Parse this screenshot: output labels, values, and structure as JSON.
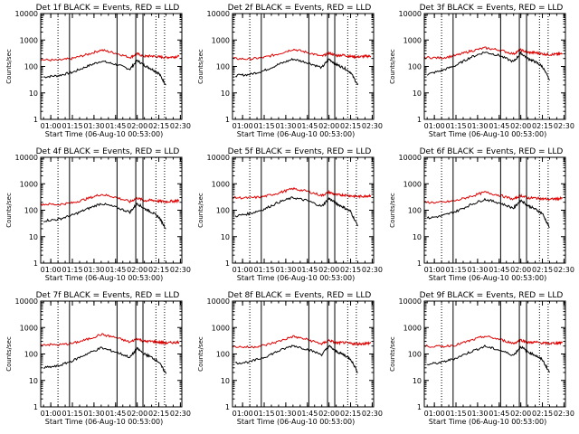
{
  "figure": {
    "background": "#ffffff",
    "event_color": "#000000",
    "lld_color": "#e00000",
    "axis_color": "#000000"
  },
  "chart_data": [
    {
      "type": "line",
      "title": "Det 1f BLACK = Events, RED = LLD",
      "xlabel": "Start Time (06-Aug-10 00:53:00)",
      "ylabel": "Counts/sec",
      "yscale": "log",
      "ylim": [
        1,
        10000
      ],
      "xlim": [
        "00:53",
        "02:31"
      ],
      "xtick_labels": [
        "01:00",
        "01:15",
        "01:30",
        "01:45",
        "02:00",
        "02:15",
        "02:30"
      ],
      "ytick_labels": [
        "1",
        "10",
        "100",
        "1000",
        "10000"
      ],
      "series": [
        {
          "name": "Events",
          "color": "#000000",
          "x": [
            "00:55",
            "01:05",
            "01:15",
            "01:25",
            "01:35",
            "01:45",
            "01:55",
            "02:00",
            "02:05",
            "02:10",
            "02:15",
            "02:20"
          ],
          "values": [
            40,
            45,
            60,
            100,
            160,
            120,
            80,
            170,
            110,
            80,
            55,
            20
          ]
        },
        {
          "name": "LLD",
          "color": "#e00000",
          "x": [
            "00:53",
            "01:05",
            "01:15",
            "01:25",
            "01:35",
            "01:45",
            "01:55",
            "02:00",
            "02:05",
            "02:10",
            "02:15",
            "02:20",
            "02:25",
            "02:29"
          ],
          "values": [
            180,
            170,
            200,
            280,
            420,
            320,
            220,
            300,
            240,
            250,
            230,
            220,
            230,
            240
          ]
        }
      ]
    },
    {
      "type": "line",
      "title": "Det 2f BLACK = Events, RED = LLD",
      "xlabel": "Start Time (06-Aug-10 00:53:00)",
      "ylabel": "Counts/sec",
      "yscale": "log",
      "ylim": [
        1,
        10000
      ],
      "xlim": [
        "00:53",
        "02:31"
      ],
      "xtick_labels": [
        "01:00",
        "01:15",
        "01:30",
        "01:45",
        "02:00",
        "02:15",
        "02:30"
      ],
      "ytick_labels": [
        "1",
        "10",
        "100",
        "1000",
        "10000"
      ],
      "series": [
        {
          "name": "Events",
          "color": "#000000",
          "x": [
            "00:55",
            "01:05",
            "01:15",
            "01:25",
            "01:35",
            "01:45",
            "01:55",
            "02:00",
            "02:05",
            "02:10",
            "02:15",
            "02:20"
          ],
          "values": [
            45,
            50,
            70,
            120,
            190,
            140,
            90,
            190,
            120,
            90,
            60,
            20
          ]
        },
        {
          "name": "LLD",
          "color": "#e00000",
          "x": [
            "00:53",
            "01:05",
            "01:15",
            "01:25",
            "01:35",
            "01:45",
            "01:55",
            "02:00",
            "02:05",
            "02:10",
            "02:15",
            "02:20",
            "02:25",
            "02:29"
          ],
          "values": [
            200,
            190,
            220,
            300,
            450,
            340,
            240,
            320,
            260,
            270,
            240,
            230,
            240,
            250
          ]
        }
      ]
    },
    {
      "type": "line",
      "title": "Det 3f BLACK = Events, RED = LLD",
      "xlabel": "Start Time (06-Aug-10 00:53:00)",
      "ylabel": "Counts/sec",
      "yscale": "log",
      "ylim": [
        1,
        10000
      ],
      "xlim": [
        "00:53",
        "02:31"
      ],
      "xtick_labels": [
        "01:00",
        "01:15",
        "01:30",
        "01:45",
        "02:00",
        "02:15",
        "02:30"
      ],
      "ytick_labels": [
        "1",
        "10",
        "100",
        "1000",
        "10000"
      ],
      "series": [
        {
          "name": "Events",
          "color": "#000000",
          "x": [
            "00:55",
            "01:05",
            "01:15",
            "01:25",
            "01:35",
            "01:45",
            "01:55",
            "02:00",
            "02:05",
            "02:10",
            "02:15",
            "02:20"
          ],
          "values": [
            50,
            70,
            110,
            220,
            350,
            260,
            150,
            320,
            200,
            150,
            100,
            30
          ]
        },
        {
          "name": "LLD",
          "color": "#e00000",
          "x": [
            "00:53",
            "01:05",
            "01:15",
            "01:25",
            "01:35",
            "01:45",
            "01:55",
            "02:00",
            "02:05",
            "02:10",
            "02:15",
            "02:20",
            "02:25",
            "02:29"
          ],
          "values": [
            220,
            210,
            260,
            380,
            500,
            420,
            300,
            420,
            340,
            330,
            300,
            280,
            290,
            300
          ]
        }
      ]
    },
    {
      "type": "line",
      "title": "Det 4f BLACK = Events, RED = LLD",
      "xlabel": "Start Time (06-Aug-10 00:53:00)",
      "ylabel": "Counts/sec",
      "yscale": "log",
      "ylim": [
        1,
        10000
      ],
      "xlim": [
        "00:53",
        "02:31"
      ],
      "xtick_labels": [
        "01:00",
        "01:15",
        "01:30",
        "01:45",
        "02:00",
        "02:15",
        "02:30"
      ],
      "ytick_labels": [
        "1",
        "10",
        "100",
        "1000",
        "10000"
      ],
      "series": [
        {
          "name": "Events",
          "color": "#000000",
          "x": [
            "00:55",
            "01:05",
            "01:15",
            "01:25",
            "01:35",
            "01:45",
            "01:55",
            "02:00",
            "02:05",
            "02:10",
            "02:15",
            "02:20"
          ],
          "values": [
            40,
            45,
            65,
            110,
            180,
            130,
            85,
            180,
            115,
            85,
            55,
            20
          ]
        },
        {
          "name": "LLD",
          "color": "#e00000",
          "x": [
            "00:53",
            "01:05",
            "01:15",
            "01:25",
            "01:35",
            "01:45",
            "01:55",
            "02:00",
            "02:05",
            "02:10",
            "02:15",
            "02:20",
            "02:25",
            "02:29"
          ],
          "values": [
            170,
            165,
            190,
            270,
            400,
            310,
            210,
            290,
            230,
            240,
            220,
            210,
            220,
            230
          ]
        }
      ]
    },
    {
      "type": "line",
      "title": "Det 5f BLACK = Events, RED = LLD",
      "xlabel": "Start Time (06-Aug-10 00:53:00)",
      "ylabel": "Counts/sec",
      "yscale": "log",
      "ylim": [
        1,
        10000
      ],
      "xlim": [
        "00:53",
        "02:31"
      ],
      "xtick_labels": [
        "01:00",
        "01:15",
        "01:30",
        "01:45",
        "02:00",
        "02:15",
        "02:30"
      ],
      "ytick_labels": [
        "1",
        "10",
        "100",
        "1000",
        "10000"
      ],
      "series": [
        {
          "name": "Events",
          "color": "#000000",
          "x": [
            "00:55",
            "01:05",
            "01:15",
            "01:25",
            "01:35",
            "01:45",
            "01:55",
            "02:00",
            "02:05",
            "02:10",
            "02:15",
            "02:20"
          ],
          "values": [
            60,
            75,
            110,
            200,
            300,
            230,
            140,
            280,
            180,
            130,
            90,
            25
          ]
        },
        {
          "name": "LLD",
          "color": "#e00000",
          "x": [
            "00:53",
            "01:05",
            "01:15",
            "01:25",
            "01:35",
            "01:45",
            "01:55",
            "02:00",
            "02:05",
            "02:10",
            "02:15",
            "02:20",
            "02:25",
            "02:29"
          ],
          "values": [
            300,
            290,
            330,
            450,
            650,
            520,
            360,
            480,
            380,
            380,
            350,
            330,
            340,
            360
          ]
        }
      ]
    },
    {
      "type": "line",
      "title": "Det 6f BLACK = Events, RED = LLD",
      "xlabel": "Start Time (06-Aug-10 00:53:00)",
      "ylabel": "Counts/sec",
      "yscale": "log",
      "ylim": [
        1,
        10000
      ],
      "xlim": [
        "00:53",
        "02:31"
      ],
      "xtick_labels": [
        "01:00",
        "01:15",
        "01:30",
        "01:45",
        "02:00",
        "02:15",
        "02:30"
      ],
      "ytick_labels": [
        "1",
        "10",
        "100",
        "1000",
        "10000"
      ],
      "series": [
        {
          "name": "Events",
          "color": "#000000",
          "x": [
            "00:55",
            "01:05",
            "01:15",
            "01:25",
            "01:35",
            "01:45",
            "01:55",
            "02:00",
            "02:05",
            "02:10",
            "02:15",
            "02:20"
          ],
          "values": [
            50,
            60,
            90,
            160,
            260,
            190,
            120,
            240,
            150,
            110,
            75,
            22
          ]
        },
        {
          "name": "LLD",
          "color": "#e00000",
          "x": [
            "00:53",
            "01:05",
            "01:15",
            "01:25",
            "01:35",
            "01:45",
            "01:55",
            "02:00",
            "02:05",
            "02:10",
            "02:15",
            "02:20",
            "02:25",
            "02:29"
          ],
          "values": [
            200,
            195,
            230,
            330,
            480,
            370,
            260,
            360,
            290,
            290,
            270,
            260,
            270,
            280
          ]
        }
      ]
    },
    {
      "type": "line",
      "title": "Det 7f BLACK = Events, RED = LLD",
      "xlabel": "Start Time (06-Aug-10 00:53:00)",
      "ylabel": "Counts/sec",
      "yscale": "log",
      "ylim": [
        1,
        10000
      ],
      "xlim": [
        "00:53",
        "02:31"
      ],
      "xtick_labels": [
        "01:00",
        "01:15",
        "01:30",
        "01:45",
        "02:00",
        "02:15",
        "02:30"
      ],
      "ytick_labels": [
        "1",
        "10",
        "100",
        "1000",
        "10000"
      ],
      "series": [
        {
          "name": "Events",
          "color": "#000000",
          "x": [
            "00:55",
            "01:05",
            "01:15",
            "01:25",
            "01:35",
            "01:45",
            "01:55",
            "02:00",
            "02:05",
            "02:10",
            "02:15",
            "02:20"
          ],
          "values": [
            30,
            35,
            55,
            100,
            170,
            120,
            75,
            160,
            100,
            75,
            50,
            18
          ]
        },
        {
          "name": "LLD",
          "color": "#e00000",
          "x": [
            "00:53",
            "01:05",
            "01:15",
            "01:25",
            "01:35",
            "01:45",
            "01:55",
            "02:00",
            "02:05",
            "02:10",
            "02:15",
            "02:20",
            "02:25",
            "02:29"
          ],
          "values": [
            230,
            220,
            250,
            350,
            550,
            420,
            280,
            380,
            300,
            300,
            280,
            260,
            270,
            280
          ]
        }
      ]
    },
    {
      "type": "line",
      "title": "Det 8f BLACK = Events, RED = LLD",
      "xlabel": "Start Time (06-Aug-10 00:53:00)",
      "ylabel": "Counts/sec",
      "yscale": "log",
      "ylim": [
        1,
        10000
      ],
      "xlim": [
        "00:53",
        "02:31"
      ],
      "xtick_labels": [
        "01:00",
        "01:15",
        "01:30",
        "01:45",
        "02:00",
        "02:15",
        "02:30"
      ],
      "ytick_labels": [
        "1",
        "10",
        "100",
        "1000",
        "10000"
      ],
      "series": [
        {
          "name": "Events",
          "color": "#000000",
          "x": [
            "00:55",
            "01:05",
            "01:15",
            "01:25",
            "01:35",
            "01:45",
            "01:55",
            "02:00",
            "02:05",
            "02:10",
            "02:15",
            "02:20"
          ],
          "values": [
            45,
            50,
            75,
            130,
            210,
            150,
            95,
            200,
            125,
            95,
            65,
            20
          ]
        },
        {
          "name": "LLD",
          "color": "#e00000",
          "x": [
            "00:53",
            "01:05",
            "01:15",
            "01:25",
            "01:35",
            "01:45",
            "01:55",
            "02:00",
            "02:05",
            "02:10",
            "02:15",
            "02:20",
            "02:25",
            "02:29"
          ],
          "values": [
            190,
            180,
            210,
            300,
            460,
            350,
            240,
            330,
            260,
            270,
            250,
            240,
            250,
            260
          ]
        }
      ]
    },
    {
      "type": "line",
      "title": "Det 9f BLACK = Events, RED = LLD",
      "xlabel": "Start Time (06-Aug-10 00:53:00)",
      "ylabel": "Counts/sec",
      "yscale": "log",
      "ylim": [
        1,
        10000
      ],
      "xlim": [
        "00:53",
        "02:31"
      ],
      "xtick_labels": [
        "01:00",
        "01:15",
        "01:30",
        "01:45",
        "02:00",
        "02:15",
        "02:30"
      ],
      "ytick_labels": [
        "1",
        "10",
        "100",
        "1000",
        "10000"
      ],
      "series": [
        {
          "name": "Events",
          "color": "#000000",
          "x": [
            "00:55",
            "01:05",
            "01:15",
            "01:25",
            "01:35",
            "01:45",
            "01:55",
            "02:00",
            "02:05",
            "02:10",
            "02:15",
            "02:20"
          ],
          "values": [
            40,
            48,
            70,
            120,
            195,
            140,
            90,
            190,
            120,
            90,
            60,
            20
          ]
        },
        {
          "name": "LLD",
          "color": "#e00000",
          "x": [
            "00:53",
            "01:05",
            "01:15",
            "01:25",
            "01:35",
            "01:45",
            "01:55",
            "02:00",
            "02:05",
            "02:10",
            "02:15",
            "02:20",
            "02:25",
            "02:29"
          ],
          "values": [
            200,
            190,
            220,
            320,
            470,
            360,
            250,
            340,
            270,
            280,
            260,
            250,
            260,
            270
          ]
        }
      ]
    }
  ],
  "markers": {
    "solid_x": [
      "01:13",
      "01:46",
      "01:59",
      "02:04"
    ],
    "dotted_x": [
      "01:05",
      "02:13",
      "02:19"
    ]
  }
}
